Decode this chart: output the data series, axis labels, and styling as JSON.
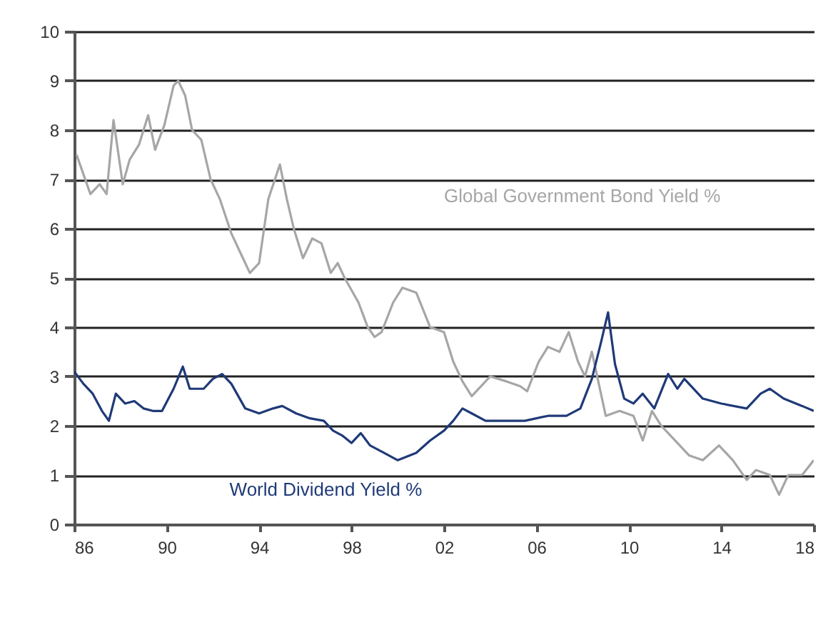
{
  "chart_data": {
    "type": "line",
    "xlim": [
      1986,
      2018
    ],
    "xticks": [
      {
        "value": 1986,
        "label": "86"
      },
      {
        "value": 1990,
        "label": "90"
      },
      {
        "value": 1994,
        "label": "94"
      },
      {
        "value": 1998,
        "label": "98"
      },
      {
        "value": 2002,
        "label": "02"
      },
      {
        "value": 2006,
        "label": "06"
      },
      {
        "value": 2010,
        "label": "10"
      },
      {
        "value": 2014,
        "label": "14"
      },
      {
        "value": 2018,
        "label": "18"
      }
    ],
    "ylim": [
      0,
      10
    ],
    "yticks": [
      0,
      1,
      2,
      3,
      4,
      5,
      6,
      7,
      8,
      9,
      10
    ],
    "grid": "y",
    "legend": false,
    "series": [
      {
        "name": "Global Government Bond Yield %",
        "color": "#a6a6a6",
        "x": [
          1986.1,
          1986.4,
          1986.7,
          1987.1,
          1987.4,
          1987.7,
          1988.1,
          1988.4,
          1988.8,
          1989.2,
          1989.5,
          1989.9,
          1990.3,
          1990.5,
          1990.8,
          1991.1,
          1991.5,
          1991.9,
          1992.3,
          1992.8,
          1993.2,
          1993.6,
          1994.0,
          1994.4,
          1994.9,
          1995.2,
          1995.5,
          1995.9,
          1996.3,
          1996.7,
          1997.1,
          1997.4,
          1997.7,
          1998.3,
          1998.7,
          1999.0,
          1999.3,
          1999.8,
          2000.2,
          2000.8,
          2001.4,
          2002.0,
          2002.4,
          2002.8,
          2003.2,
          2003.6,
          2004.0,
          2004.7,
          2005.3,
          2005.6,
          2006.1,
          2006.5,
          2007.0,
          2007.4,
          2007.8,
          2008.1,
          2008.4,
          2009.0,
          2009.6,
          2010.2,
          2010.6,
          2011.0,
          2011.4,
          2012.0,
          2012.6,
          2013.2,
          2013.9,
          2014.5,
          2015.1,
          2015.5,
          2016.1,
          2016.5,
          2016.9,
          2017.5,
          2018.0
        ],
        "values": [
          7.5,
          7.1,
          6.7,
          6.9,
          6.7,
          8.2,
          6.9,
          7.4,
          7.7,
          8.3,
          7.6,
          8.1,
          8.9,
          9.0,
          8.7,
          8.0,
          7.8,
          7.0,
          6.6,
          5.9,
          5.5,
          5.1,
          5.3,
          6.6,
          7.3,
          6.6,
          6.0,
          5.4,
          5.8,
          5.7,
          5.1,
          5.3,
          5.0,
          4.5,
          4.0,
          3.8,
          3.9,
          4.5,
          4.8,
          4.7,
          4.0,
          3.9,
          3.3,
          2.9,
          2.6,
          2.8,
          3.0,
          2.9,
          2.8,
          2.7,
          3.3,
          3.6,
          3.5,
          3.9,
          3.3,
          3.0,
          3.5,
          2.2,
          2.3,
          2.2,
          1.7,
          2.3,
          2.0,
          1.7,
          1.4,
          1.3,
          1.6,
          1.3,
          0.9,
          1.1,
          1.0,
          0.6,
          1.0,
          1.0,
          1.3
        ]
      },
      {
        "name": "World Dividend Yield %",
        "color": "#1f3a78",
        "x": [
          1986.0,
          1986.4,
          1986.8,
          1987.2,
          1987.5,
          1987.8,
          1988.2,
          1988.6,
          1989.0,
          1989.4,
          1989.8,
          1990.3,
          1990.7,
          1991.0,
          1991.6,
          1992.0,
          1992.4,
          1992.8,
          1993.4,
          1994.0,
          1994.6,
          1995.0,
          1995.6,
          1996.2,
          1996.8,
          1997.2,
          1997.6,
          1998.0,
          1998.4,
          1998.8,
          1999.4,
          2000.0,
          2000.8,
          2001.4,
          2002.0,
          2002.4,
          2002.8,
          2003.2,
          2003.8,
          2004.7,
          2005.5,
          2006.5,
          2007.3,
          2007.9,
          2008.4,
          2008.8,
          2009.1,
          2009.4,
          2009.8,
          2010.2,
          2010.6,
          2011.1,
          2011.7,
          2012.1,
          2012.4,
          2013.2,
          2014.0,
          2015.1,
          2015.7,
          2016.1,
          2016.7,
          2017.5,
          2018.0
        ],
        "values": [
          3.1,
          2.85,
          2.65,
          2.3,
          2.1,
          2.65,
          2.45,
          2.5,
          2.35,
          2.3,
          2.3,
          2.75,
          3.2,
          2.75,
          2.75,
          2.95,
          3.05,
          2.85,
          2.35,
          2.25,
          2.35,
          2.4,
          2.25,
          2.15,
          2.1,
          1.9,
          1.8,
          1.65,
          1.85,
          1.6,
          1.45,
          1.3,
          1.45,
          1.7,
          1.9,
          2.1,
          2.35,
          2.25,
          2.1,
          2.1,
          2.1,
          2.2,
          2.2,
          2.35,
          2.95,
          3.7,
          4.3,
          3.25,
          2.55,
          2.45,
          2.65,
          2.35,
          3.05,
          2.75,
          2.95,
          2.55,
          2.45,
          2.35,
          2.65,
          2.75,
          2.55,
          2.4,
          2.3
        ]
      }
    ]
  }
}
